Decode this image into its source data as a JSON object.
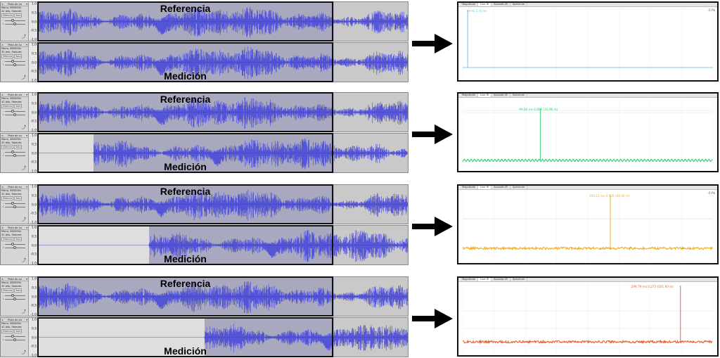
{
  "track_header": {
    "name": "Pista de au",
    "info_1": "Mono, 48000Hz",
    "info_2": "32 bits, flotante",
    "silence_label": "Silencio",
    "solo_label": "Solo",
    "gain_marks": [
      "-",
      "+"
    ],
    "pan_marks": [
      "I",
      "D"
    ]
  },
  "scale_ticks": [
    "1.0",
    "0.5",
    "0.0",
    "-0.5",
    "-1.0"
  ],
  "labels": {
    "reference": "Referencia",
    "measurement": "Medición"
  },
  "panel_tabs": [
    "Magnitude",
    "Live IR",
    "Acoustic IR",
    "Spectrum"
  ],
  "panel_active_tab": "Live IR",
  "rows": [
    {
      "measurement_silence_fraction": 0.0,
      "peak_label": "0 ms  1 (0 m)",
      "peak_fraction": 0.02,
      "corner_label": "-0 Pk",
      "color": "#5bc0de",
      "baseline": "flat"
    },
    {
      "measurement_silence_fraction": 0.1,
      "peak_label": "99.84 ms  0.800  (33.96 m)",
      "peak_fraction": 0.31,
      "corner_label": "",
      "color": "#2ecc71",
      "baseline": "wavy"
    },
    {
      "measurement_silence_fraction": 0.2,
      "peak_label": "200.21 ms  0.526  (68.06 m)",
      "peak_fraction": 0.59,
      "corner_label": "-0 Pk",
      "color": "#f0ad1e",
      "baseline": "noisy"
    },
    {
      "measurement_silence_fraction": 0.3,
      "peak_label": "299.79 ms  0.273  (101.93 m)",
      "peak_fraction": 0.87,
      "corner_label": "",
      "color": "#e85a2c",
      "baseline": "noisy"
    }
  ],
  "colors": {
    "waveform": "#4a4ad8",
    "grid": "#cfe3ec",
    "frame": "#111111"
  }
}
